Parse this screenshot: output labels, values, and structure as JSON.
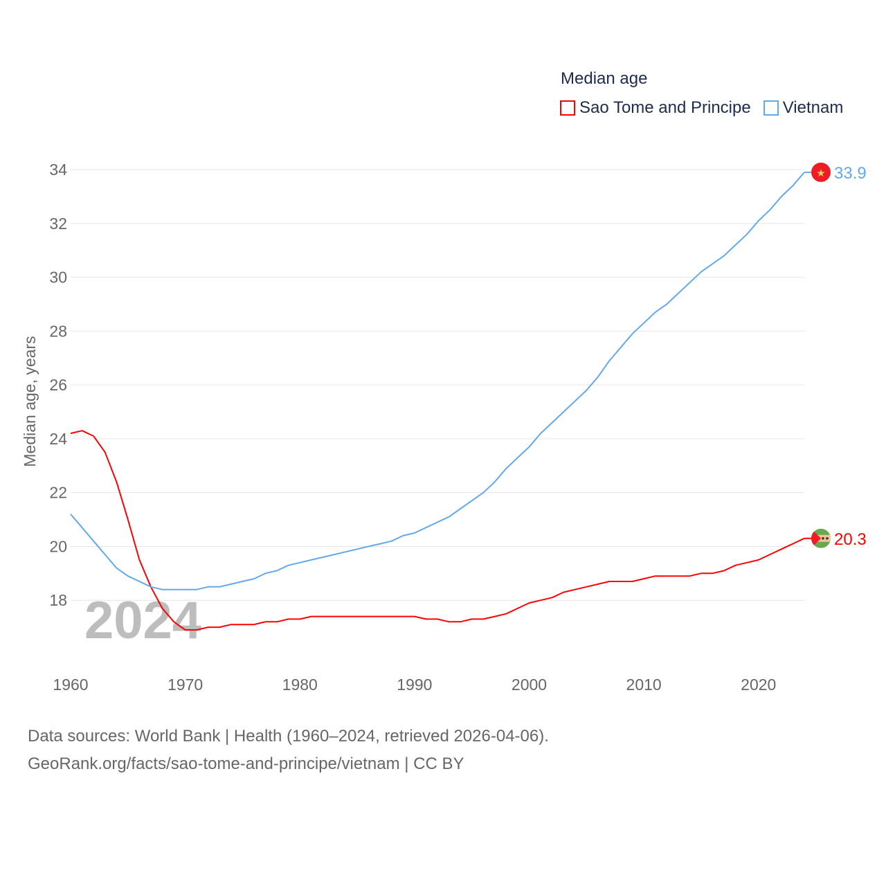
{
  "chart_data": {
    "type": "line",
    "title": "Median age",
    "xlabel": "",
    "ylabel": "Median age, years",
    "xlim": [
      1960,
      2024
    ],
    "ylim": [
      16,
      34
    ],
    "x_ticks": [
      1960,
      1970,
      1980,
      1990,
      2000,
      2010,
      2020
    ],
    "y_ticks": [
      18,
      20,
      22,
      24,
      26,
      28,
      30,
      32,
      34
    ],
    "grid": true,
    "legend_position": "top-right",
    "year_watermark": "2024",
    "x": [
      1960,
      1961,
      1962,
      1963,
      1964,
      1965,
      1966,
      1967,
      1968,
      1969,
      1970,
      1971,
      1972,
      1973,
      1974,
      1975,
      1976,
      1977,
      1978,
      1979,
      1980,
      1981,
      1982,
      1983,
      1984,
      1985,
      1986,
      1987,
      1988,
      1989,
      1990,
      1991,
      1992,
      1993,
      1994,
      1995,
      1996,
      1997,
      1998,
      1999,
      2000,
      2001,
      2002,
      2003,
      2004,
      2005,
      2006,
      2007,
      2008,
      2009,
      2010,
      2011,
      2012,
      2013,
      2014,
      2015,
      2016,
      2017,
      2018,
      2019,
      2020,
      2021,
      2022,
      2023,
      2024
    ],
    "series": [
      {
        "name": "Sao Tome and Principe",
        "color": "#ff0000",
        "end_label": "20.3",
        "values": [
          24.2,
          24.3,
          24.1,
          23.5,
          22.4,
          21.0,
          19.5,
          18.5,
          17.7,
          17.2,
          16.9,
          16.9,
          17.0,
          17.0,
          17.1,
          17.1,
          17.1,
          17.2,
          17.2,
          17.3,
          17.3,
          17.4,
          17.4,
          17.4,
          17.4,
          17.4,
          17.4,
          17.4,
          17.4,
          17.4,
          17.4,
          17.3,
          17.3,
          17.2,
          17.2,
          17.3,
          17.3,
          17.4,
          17.5,
          17.7,
          17.9,
          18.0,
          18.1,
          18.3,
          18.4,
          18.5,
          18.6,
          18.7,
          18.7,
          18.7,
          18.8,
          18.9,
          18.9,
          18.9,
          18.9,
          19.0,
          19.0,
          19.1,
          19.3,
          19.4,
          19.5,
          19.7,
          19.9,
          20.1,
          20.3
        ]
      },
      {
        "name": "Vietnam",
        "color": "#63a8ea",
        "end_label": "33.9",
        "values": [
          21.2,
          20.7,
          20.2,
          19.7,
          19.2,
          18.9,
          18.7,
          18.5,
          18.4,
          18.4,
          18.4,
          18.4,
          18.5,
          18.5,
          18.6,
          18.7,
          18.8,
          19.0,
          19.1,
          19.3,
          19.4,
          19.5,
          19.6,
          19.7,
          19.8,
          19.9,
          20.0,
          20.1,
          20.2,
          20.4,
          20.5,
          20.7,
          20.9,
          21.1,
          21.4,
          21.7,
          22.0,
          22.4,
          22.9,
          23.3,
          23.7,
          24.2,
          24.6,
          25.0,
          25.4,
          25.8,
          26.3,
          26.9,
          27.4,
          27.9,
          28.3,
          28.7,
          29.0,
          29.4,
          29.8,
          30.2,
          30.5,
          30.8,
          31.2,
          31.6,
          32.1,
          32.5,
          33.0,
          33.4,
          33.9
        ]
      }
    ]
  },
  "footer": {
    "line1": "Data sources: World Bank | Health (1960–2024, retrieved 2026-04-06).",
    "line2": "GeoRank.org/facts/sao-tome-and-principe/vietnam | CC BY"
  }
}
